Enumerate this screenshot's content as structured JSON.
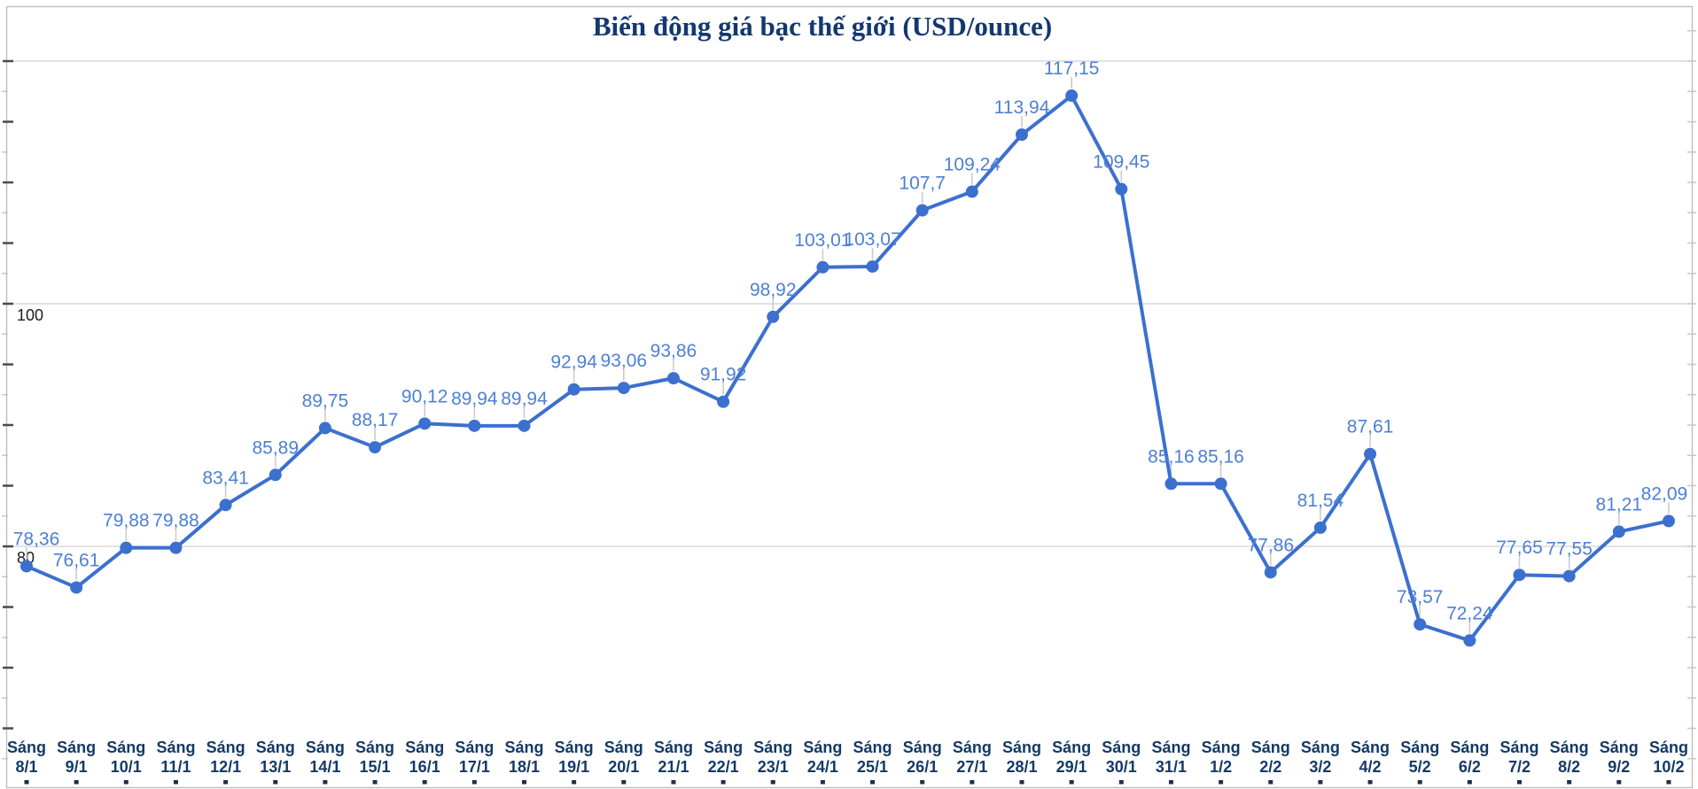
{
  "chart_data": {
    "type": "line",
    "title": "Biến động giá bạc thế giới (USD/ounce)",
    "x_prefix": "Sáng",
    "categories": [
      "8/1",
      "9/1",
      "10/1",
      "11/1",
      "12/1",
      "13/1",
      "14/1",
      "15/1",
      "16/1",
      "17/1",
      "18/1",
      "19/1",
      "20/1",
      "21/1",
      "22/1",
      "23/1",
      "24/1",
      "25/1",
      "26/1",
      "27/1",
      "28/1",
      "29/1",
      "30/1",
      "31/1",
      "1/2",
      "2/2",
      "3/2",
      "4/2",
      "5/2",
      "6/2",
      "7/2",
      "8/2",
      "9/2",
      "10/2"
    ],
    "values": [
      78.36,
      76.61,
      79.88,
      79.88,
      83.41,
      85.89,
      89.75,
      88.17,
      90.12,
      89.94,
      89.94,
      92.94,
      93.06,
      93.86,
      91.92,
      98.92,
      103.01,
      103.07,
      107.7,
      109.24,
      113.94,
      117.15,
      109.45,
      85.16,
      85.16,
      77.86,
      81.54,
      87.61,
      73.57,
      72.24,
      77.65,
      77.55,
      81.21,
      82.09
    ],
    "value_labels": [
      "78,36",
      "76,61",
      "79,88",
      "79,88",
      "83,41",
      "85,89",
      "89,75",
      "88,17",
      "90,12",
      "89,94",
      "89,94",
      "92,94",
      "93,06",
      "93,86",
      "91,92",
      "98,92",
      "103,01",
      "103,07",
      "107,7",
      "109,24",
      "113,94",
      "117,15",
      "109,45",
      "85,16",
      "85,16",
      "77,86",
      "81,54",
      "87,61",
      "73,57",
      "72,24",
      "77,65",
      "77,55",
      "81,21",
      "82,09"
    ],
    "xlabel": "",
    "ylabel": "",
    "ylim": [
      60,
      124
    ],
    "y_axis": {
      "gridline_values": [
        120,
        100,
        80
      ],
      "labeled_ticks": [
        {
          "value": 100,
          "text": "100"
        },
        {
          "value": 80,
          "text": "80"
        }
      ]
    },
    "legend": "none",
    "grid": "on",
    "colors": {
      "line": "#3c70cf",
      "point": "#3c70cf",
      "data_label": "#4d80d5",
      "title": "#12386f",
      "x_label": "#143a66",
      "y_label": "#1c1c1c",
      "gridline": "#d9d9d9",
      "border": "#bdbdbd",
      "leader": "#cccccc",
      "tick_major": "#4a4a4a",
      "tick_minor": "#c8c8c8",
      "bottom_tick": "#1f2d49",
      "background": "#ffffff"
    }
  }
}
